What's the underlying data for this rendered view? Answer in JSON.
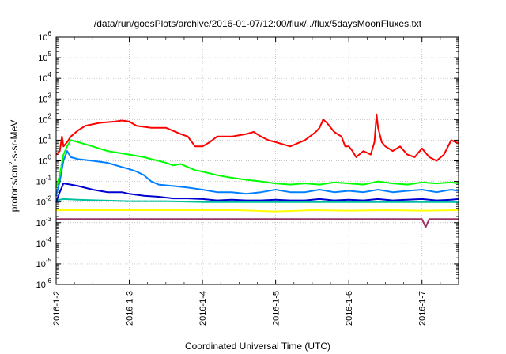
{
  "chart_data": {
    "type": "line",
    "title": "/data/run/goesPlots/archive/2016-01-07/12:00/flux/../flux/5daysMoonFluxes.txt",
    "xlabel": "Coordinated Universal Time (UTC)",
    "ylabel": "protons/cm2-s-sr-MeV",
    "ylabel_parts": {
      "pre": "protons/cm",
      "sup": "2",
      "post": "-s-sr-MeV"
    },
    "yscale": "log",
    "xlim": [
      0,
      5.5
    ],
    "ylim_exp": [
      -6,
      6
    ],
    "y_tick_exponents": [
      -6,
      -5,
      -4,
      -3,
      -2,
      -1,
      0,
      1,
      2,
      3,
      4,
      5,
      6
    ],
    "y_tick_base": "10",
    "x_ticks": [
      {
        "pos": 0,
        "label": "2016-1-2"
      },
      {
        "pos": 1,
        "label": "2016-1-3"
      },
      {
        "pos": 2,
        "label": "2016-1-4"
      },
      {
        "pos": 3,
        "label": "2016-1-5"
      },
      {
        "pos": 4,
        "label": "2016-1-6"
      },
      {
        "pos": 5,
        "label": "2016-1-7"
      }
    ],
    "grid": true,
    "series": [
      {
        "color": "#ff0000",
        "x": [
          0,
          0.05,
          0.08,
          0.1,
          0.15,
          0.2,
          0.3,
          0.4,
          0.6,
          0.8,
          0.9,
          1.0,
          1.1,
          1.3,
          1.5,
          1.7,
          1.8,
          1.9,
          2.0,
          2.1,
          2.2,
          2.4,
          2.6,
          2.7,
          2.8,
          2.9,
          3.0,
          3.2,
          3.4,
          3.55,
          3.6,
          3.65,
          3.7,
          3.8,
          3.9,
          3.95,
          4.0,
          4.05,
          4.1,
          4.2,
          4.3,
          4.35,
          4.38,
          4.4,
          4.45,
          4.5,
          4.6,
          4.7,
          4.8,
          4.9,
          5.0,
          5.1,
          5.2,
          5.3,
          5.4,
          5.5
        ],
        "y": [
          2,
          3,
          15,
          5,
          8,
          15,
          30,
          50,
          70,
          80,
          90,
          80,
          50,
          40,
          40,
          20,
          15,
          5,
          5,
          8,
          15,
          15,
          20,
          25,
          15,
          10,
          8,
          5,
          10,
          25,
          40,
          100,
          70,
          25,
          15,
          5,
          5,
          3,
          1.5,
          3,
          2,
          8,
          180,
          40,
          8,
          5,
          3,
          5,
          2,
          1.5,
          4,
          1.5,
          1,
          2,
          10,
          7
        ]
      },
      {
        "color": "#00ff00",
        "x": [
          0,
          0.05,
          0.1,
          0.15,
          0.2,
          0.3,
          0.5,
          0.7,
          1.0,
          1.2,
          1.3,
          1.4,
          1.5,
          1.6,
          1.7,
          1.8,
          1.9,
          2.0,
          2.2,
          2.4,
          2.6,
          2.8,
          3.0,
          3.2,
          3.4,
          3.6,
          3.8,
          4.0,
          4.2,
          4.4,
          4.6,
          4.8,
          5.0,
          5.2,
          5.4,
          5.5
        ],
        "y": [
          0.05,
          0.2,
          2,
          5,
          10,
          8,
          5,
          3,
          2,
          1.5,
          1.2,
          1,
          0.8,
          0.6,
          0.7,
          0.5,
          0.35,
          0.3,
          0.2,
          0.15,
          0.12,
          0.1,
          0.08,
          0.07,
          0.08,
          0.07,
          0.09,
          0.08,
          0.07,
          0.1,
          0.08,
          0.07,
          0.09,
          0.08,
          0.09,
          0.08
        ]
      },
      {
        "color": "#0080ff",
        "x": [
          0,
          0.05,
          0.1,
          0.15,
          0.2,
          0.3,
          0.5,
          0.7,
          0.9,
          1.0,
          1.1,
          1.2,
          1.3,
          1.4,
          1.6,
          1.8,
          2.0,
          2.2,
          2.4,
          2.6,
          2.8,
          3.0,
          3.2,
          3.4,
          3.6,
          3.8,
          4.0,
          4.2,
          4.4,
          4.6,
          4.8,
          5.0,
          5.2,
          5.4,
          5.5
        ],
        "y": [
          0.02,
          0.1,
          1,
          3,
          1.5,
          1.2,
          1,
          0.8,
          0.5,
          0.4,
          0.3,
          0.2,
          0.1,
          0.07,
          0.06,
          0.05,
          0.04,
          0.03,
          0.03,
          0.025,
          0.03,
          0.04,
          0.03,
          0.03,
          0.04,
          0.03,
          0.035,
          0.03,
          0.04,
          0.03,
          0.035,
          0.04,
          0.03,
          0.04,
          0.035
        ]
      },
      {
        "color": "#0000d0",
        "x": [
          0,
          0.05,
          0.1,
          0.2,
          0.3,
          0.5,
          0.7,
          0.9,
          1.0,
          1.2,
          1.4,
          1.6,
          1.8,
          2.0,
          2.2,
          2.4,
          2.6,
          2.8,
          3.0,
          3.2,
          3.4,
          3.6,
          3.8,
          4.0,
          4.2,
          4.4,
          4.6,
          4.8,
          5.0,
          5.2,
          5.4,
          5.5
        ],
        "y": [
          0.01,
          0.03,
          0.08,
          0.07,
          0.06,
          0.04,
          0.03,
          0.03,
          0.025,
          0.02,
          0.018,
          0.015,
          0.015,
          0.014,
          0.012,
          0.013,
          0.012,
          0.012,
          0.013,
          0.012,
          0.012,
          0.014,
          0.012,
          0.013,
          0.012,
          0.014,
          0.012,
          0.013,
          0.014,
          0.012,
          0.013,
          0.014
        ]
      },
      {
        "color": "#00c0a0",
        "x": [
          0,
          0.1,
          0.3,
          0.6,
          1.0,
          1.5,
          2.0,
          2.5,
          3.0,
          3.5,
          4.0,
          4.5,
          5.0,
          5.5
        ],
        "y": [
          0.012,
          0.014,
          0.013,
          0.012,
          0.011,
          0.011,
          0.01,
          0.01,
          0.01,
          0.01,
          0.01,
          0.01,
          0.01,
          0.01
        ]
      },
      {
        "color": "#ffff00",
        "x": [
          0,
          0.5,
          1.0,
          1.5,
          2.0,
          2.5,
          3.0,
          3.5,
          4.0,
          4.5,
          5.0,
          5.5
        ],
        "y": [
          0.004,
          0.004,
          0.004,
          0.004,
          0.004,
          0.004,
          0.0035,
          0.004,
          0.0038,
          0.004,
          0.0038,
          0.004
        ]
      },
      {
        "color": "#993366",
        "x": [
          0,
          0.5,
          1.0,
          1.5,
          2.0,
          2.5,
          3.0,
          3.5,
          4.0,
          4.5,
          5.0,
          5.05,
          5.1,
          5.5
        ],
        "y": [
          0.0015,
          0.0015,
          0.0015,
          0.0015,
          0.0015,
          0.0015,
          0.0015,
          0.0015,
          0.0015,
          0.0015,
          0.0015,
          0.0006,
          0.0015,
          0.0015
        ]
      }
    ]
  }
}
